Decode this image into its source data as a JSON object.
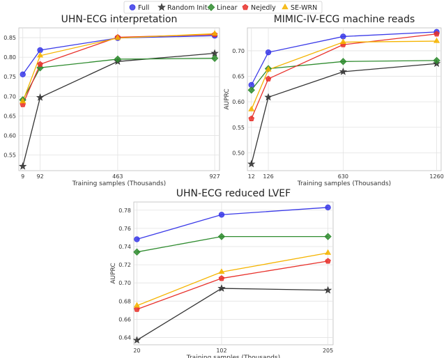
{
  "legend": {
    "entries": [
      {
        "name": "Full",
        "color": "#3a3ae8",
        "marker": "circle"
      },
      {
        "name": "Random Init.",
        "color": "#333333",
        "marker": "star"
      },
      {
        "name": "Linear",
        "color": "#2e8b2e",
        "marker": "diamond"
      },
      {
        "name": "Nejedly",
        "color": "#e8302a",
        "marker": "pentagon"
      },
      {
        "name": "SE-WRN",
        "color": "#f5b400",
        "marker": "triangle"
      }
    ]
  },
  "chart_data": [
    {
      "type": "line",
      "title": "UHN-ECG interpretation",
      "xlabel": "Training samples (Thousands)",
      "ylabel": "AUPRC",
      "x": [
        9,
        92,
        463,
        927
      ],
      "xticks": [
        9,
        92,
        463,
        927
      ],
      "xlim": [
        -10,
        950
      ],
      "ylim": [
        0.51,
        0.875
      ],
      "yticks": [
        0.55,
        0.6,
        0.65,
        0.7,
        0.75,
        0.8,
        0.85
      ],
      "grid": true,
      "series": [
        {
          "name": "Full",
          "values": [
            0.756,
            0.818,
            0.849,
            0.855
          ]
        },
        {
          "name": "Random Init.",
          "values": [
            0.521,
            0.697,
            0.789,
            0.81
          ]
        },
        {
          "name": "Linear",
          "values": [
            0.691,
            0.773,
            0.795,
            0.797
          ]
        },
        {
          "name": "Nejedly",
          "values": [
            0.679,
            0.782,
            0.851,
            0.858
          ]
        },
        {
          "name": "SE-WRN",
          "values": [
            0.687,
            0.804,
            0.849,
            0.86
          ]
        }
      ]
    },
    {
      "type": "line",
      "title": "MIMIC-IV-ECG machine reads",
      "xlabel": "Training samples (Thousands)",
      "ylabel": "AUPRC",
      "x": [
        12,
        126,
        630,
        1260
      ],
      "xticks": [
        12,
        126,
        630,
        1260
      ],
      "xlim": [
        -15,
        1290
      ],
      "ylim": [
        0.465,
        0.745
      ],
      "yticks": [
        0.5,
        0.55,
        0.6,
        0.65,
        0.7
      ],
      "grid": true,
      "series": [
        {
          "name": "Full",
          "values": [
            0.633,
            0.697,
            0.728,
            0.737
          ]
        },
        {
          "name": "Random Init.",
          "values": [
            0.478,
            0.609,
            0.659,
            0.675
          ]
        },
        {
          "name": "Linear",
          "values": [
            0.623,
            0.665,
            0.679,
            0.681
          ]
        },
        {
          "name": "Nejedly",
          "values": [
            0.567,
            0.645,
            0.712,
            0.733
          ]
        },
        {
          "name": "SE-WRN",
          "values": [
            0.585,
            0.663,
            0.717,
            0.719
          ]
        }
      ]
    },
    {
      "type": "line",
      "title": "UHN-ECG reduced LVEF",
      "xlabel": "Training samples (Thousands)",
      "ylabel": "AUPRC",
      "x": [
        20,
        102,
        205
      ],
      "xticks": [
        20,
        102,
        205
      ],
      "xlim": [
        17,
        210
      ],
      "ylim": [
        0.632,
        0.789
      ],
      "yticks": [
        0.64,
        0.66,
        0.68,
        0.7,
        0.72,
        0.74,
        0.76,
        0.78
      ],
      "grid": true,
      "series": [
        {
          "name": "Full",
          "values": [
            0.748,
            0.775,
            0.783
          ]
        },
        {
          "name": "Random Init.",
          "values": [
            0.637,
            0.694,
            0.692
          ]
        },
        {
          "name": "Linear",
          "values": [
            0.734,
            0.751,
            0.751
          ]
        },
        {
          "name": "Nejedly",
          "values": [
            0.671,
            0.705,
            0.724
          ]
        },
        {
          "name": "SE-WRN",
          "values": [
            0.675,
            0.712,
            0.733
          ]
        }
      ]
    }
  ]
}
